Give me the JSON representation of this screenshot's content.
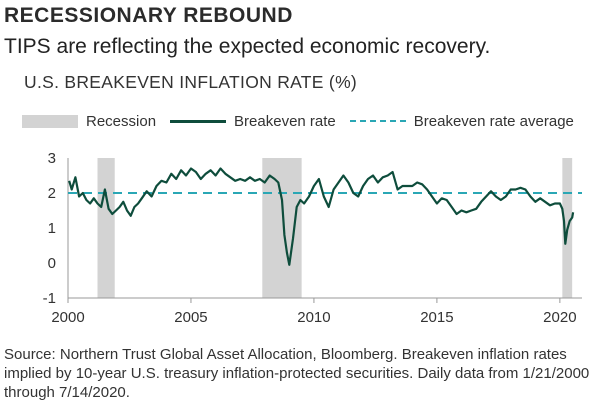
{
  "header": {
    "title": "RECESSIONARY REBOUND",
    "subtitle": "TIPS are reflecting the expected economic recovery."
  },
  "legend": {
    "recession": "Recession",
    "breakeven": "Breakeven rate",
    "average": "Breakeven rate average"
  },
  "footnote": "Source: Northern Trust Global Asset Allocation, Bloomberg. Breakeven inflation rates implied by 10-year U.S. treasury inflation-protected securities. Daily data from 1/21/2000 through 7/14/2020.",
  "colors": {
    "breakeven": "#0e4d3c",
    "average": "#2aa7b5",
    "recession": "#d3d3d3"
  },
  "chart_data": {
    "type": "line",
    "title": "U.S. BREAKEVEN INFLATION RATE (%)",
    "xlabel": "",
    "ylabel": "",
    "xlim": [
      2000.0,
      2020.9
    ],
    "ylim": [
      -1,
      3
    ],
    "x_ticks": [
      2000,
      2005,
      2010,
      2015,
      2020
    ],
    "y_ticks": [
      3,
      2,
      1,
      0,
      -1
    ],
    "grid": false,
    "legend_position": "top",
    "recessions": [
      {
        "start": 2001.2,
        "end": 2001.9
      },
      {
        "start": 2007.9,
        "end": 2009.5
      },
      {
        "start": 2020.1,
        "end": 2020.5
      }
    ],
    "average": 2.0,
    "series": [
      {
        "name": "Breakeven rate",
        "x": [
          2000.05,
          2000.15,
          2000.3,
          2000.45,
          2000.6,
          2000.75,
          2000.9,
          2001.05,
          2001.2,
          2001.35,
          2001.5,
          2001.65,
          2001.8,
          2001.95,
          2002.1,
          2002.25,
          2002.4,
          2002.55,
          2002.7,
          2002.85,
          2003.0,
          2003.2,
          2003.4,
          2003.6,
          2003.8,
          2004.0,
          2004.2,
          2004.4,
          2004.6,
          2004.8,
          2005.0,
          2005.2,
          2005.4,
          2005.6,
          2005.8,
          2006.0,
          2006.2,
          2006.4,
          2006.6,
          2006.8,
          2007.0,
          2007.2,
          2007.4,
          2007.6,
          2007.8,
          2008.0,
          2008.2,
          2008.4,
          2008.55,
          2008.7,
          2008.8,
          2008.9,
          2009.0,
          2009.15,
          2009.3,
          2009.45,
          2009.6,
          2009.8,
          2010.0,
          2010.2,
          2010.4,
          2010.6,
          2010.8,
          2011.0,
          2011.2,
          2011.4,
          2011.6,
          2011.8,
          2012.0,
          2012.2,
          2012.4,
          2012.6,
          2012.8,
          2013.0,
          2013.2,
          2013.4,
          2013.6,
          2013.8,
          2014.0,
          2014.2,
          2014.4,
          2014.6,
          2014.8,
          2015.0,
          2015.2,
          2015.4,
          2015.6,
          2015.8,
          2016.0,
          2016.2,
          2016.4,
          2016.6,
          2016.8,
          2017.0,
          2017.2,
          2017.4,
          2017.6,
          2017.8,
          2018.0,
          2018.2,
          2018.4,
          2018.6,
          2018.8,
          2019.0,
          2019.2,
          2019.4,
          2019.6,
          2019.8,
          2020.0,
          2020.1,
          2020.17,
          2020.22,
          2020.3,
          2020.4,
          2020.5,
          2020.54
        ],
        "y": [
          2.35,
          2.1,
          2.45,
          1.9,
          2.0,
          1.8,
          1.7,
          1.85,
          1.7,
          1.6,
          2.1,
          1.55,
          1.4,
          1.5,
          1.6,
          1.75,
          1.5,
          1.35,
          1.6,
          1.7,
          1.85,
          2.05,
          1.9,
          2.2,
          2.35,
          2.3,
          2.55,
          2.4,
          2.65,
          2.5,
          2.7,
          2.6,
          2.4,
          2.55,
          2.65,
          2.5,
          2.7,
          2.55,
          2.45,
          2.35,
          2.4,
          2.35,
          2.45,
          2.35,
          2.4,
          2.3,
          2.5,
          2.4,
          2.3,
          1.8,
          0.8,
          0.3,
          -0.05,
          0.7,
          1.6,
          1.8,
          1.7,
          1.9,
          2.2,
          2.4,
          1.9,
          1.6,
          2.1,
          2.3,
          2.5,
          2.3,
          2.0,
          1.9,
          2.2,
          2.4,
          2.5,
          2.3,
          2.45,
          2.5,
          2.6,
          2.1,
          2.2,
          2.2,
          2.2,
          2.3,
          2.25,
          2.1,
          1.9,
          1.7,
          1.85,
          1.8,
          1.6,
          1.4,
          1.5,
          1.45,
          1.5,
          1.55,
          1.75,
          1.9,
          2.05,
          1.9,
          1.8,
          1.9,
          2.1,
          2.1,
          2.15,
          2.1,
          1.9,
          1.75,
          1.85,
          1.75,
          1.65,
          1.7,
          1.7,
          1.55,
          1.2,
          0.55,
          0.95,
          1.2,
          1.3,
          1.45
        ]
      }
    ]
  }
}
